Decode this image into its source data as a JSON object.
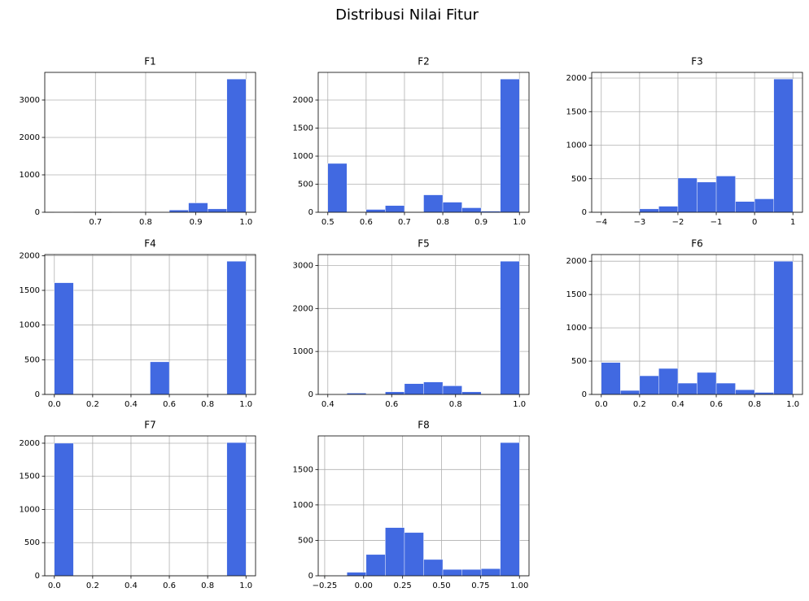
{
  "title": "Distribusi Nilai Fitur",
  "chart_data": [
    {
      "type": "histogram",
      "title": "F1",
      "color": "#4169e1",
      "grid": true,
      "bins": [
        0.618,
        0.6562,
        0.6944,
        0.7326,
        0.7708,
        0.809,
        0.8472,
        0.8854,
        0.9236,
        0.9618,
        1.0
      ],
      "values": [
        1,
        0,
        0,
        1,
        2,
        5,
        60,
        250,
        90,
        3561
      ],
      "xlim": [
        0.599,
        1.019
      ],
      "ylim": [
        0,
        3739
      ],
      "xticks": [
        0.7,
        0.8,
        0.9,
        {
          "value": 1,
          "label": "1.0"
        }
      ],
      "yticks": [
        0,
        1000,
        2000,
        3000
      ]
    },
    {
      "type": "histogram",
      "title": "F2",
      "color": "#4169e1",
      "grid": true,
      "bins": [
        0.5,
        0.55,
        0.6,
        0.65,
        0.7,
        0.75,
        0.8,
        0.85,
        0.9,
        0.95,
        1.0
      ],
      "values": [
        870,
        0,
        50,
        120,
        0,
        310,
        180,
        80,
        20,
        2374
      ],
      "xlim": [
        0.475,
        1.025
      ],
      "ylim": [
        0,
        2493
      ],
      "xticks": [
        0.5,
        0.6,
        0.7,
        0.8,
        0.9,
        {
          "value": 1,
          "label": "1.0"
        }
      ],
      "yticks": [
        0,
        500,
        1000,
        1500,
        2000
      ]
    },
    {
      "type": "histogram",
      "title": "F3",
      "color": "#4169e1",
      "grid": true,
      "bins": [
        -4,
        -3.5,
        -3,
        -2.5,
        -2,
        -1.5,
        -1,
        -0.5,
        0,
        0.5,
        1
      ],
      "values": [
        2,
        0,
        50,
        90,
        510,
        450,
        540,
        160,
        200,
        1986
      ],
      "xlim": [
        -4.25,
        1.25
      ],
      "ylim": [
        0,
        2085
      ],
      "xticks": [
        {
          "value": -4,
          "label": "−4"
        },
        {
          "value": -3,
          "label": "−3"
        },
        {
          "value": -2,
          "label": "−2"
        },
        {
          "value": -1,
          "label": "−1"
        },
        0,
        1
      ],
      "yticks": [
        0,
        500,
        1000,
        1500,
        2000
      ]
    },
    {
      "type": "histogram",
      "title": "F4",
      "color": "#4169e1",
      "grid": true,
      "bins": [
        0,
        0.1,
        0.2,
        0.3,
        0.4,
        0.5,
        0.6,
        0.7,
        0.8,
        0.9,
        1.0
      ],
      "values": [
        1610,
        0,
        0,
        0,
        0,
        470,
        0,
        0,
        0,
        1920
      ],
      "xlim": [
        -0.05,
        1.05
      ],
      "ylim": [
        0,
        2016
      ],
      "xticks": [
        {
          "value": 0,
          "label": "0.0"
        },
        0.2,
        0.4,
        0.6,
        0.8,
        {
          "value": 1,
          "label": "1.0"
        }
      ],
      "yticks": [
        0,
        500,
        1000,
        1500,
        2000
      ]
    },
    {
      "type": "histogram",
      "title": "F5",
      "color": "#4169e1",
      "grid": true,
      "bins": [
        0.4,
        0.46,
        0.52,
        0.58,
        0.64,
        0.7,
        0.76,
        0.82,
        0.88,
        0.94,
        1.0
      ],
      "values": [
        5,
        30,
        5,
        60,
        250,
        290,
        200,
        60,
        0,
        3100
      ],
      "xlim": [
        0.37,
        1.03
      ],
      "ylim": [
        0,
        3255
      ],
      "xticks": [
        0.4,
        0.6,
        0.8,
        {
          "value": 1,
          "label": "1.0"
        }
      ],
      "yticks": [
        0,
        1000,
        2000,
        3000
      ]
    },
    {
      "type": "histogram",
      "title": "F6",
      "color": "#4169e1",
      "grid": true,
      "bins": [
        0,
        0.1,
        0.2,
        0.3,
        0.4,
        0.5,
        0.6,
        0.7,
        0.8,
        0.9,
        1.0
      ],
      "values": [
        480,
        60,
        280,
        390,
        170,
        330,
        170,
        70,
        30,
        2000
      ],
      "xlim": [
        -0.05,
        1.05
      ],
      "ylim": [
        0,
        2100
      ],
      "xticks": [
        {
          "value": 0,
          "label": "0.0"
        },
        0.2,
        0.4,
        0.6,
        0.8,
        {
          "value": 1,
          "label": "1.0"
        }
      ],
      "yticks": [
        0,
        500,
        1000,
        1500,
        2000
      ]
    },
    {
      "type": "histogram",
      "title": "F7",
      "color": "#4169e1",
      "grid": true,
      "bins": [
        0,
        0.1,
        0.2,
        0.3,
        0.4,
        0.5,
        0.6,
        0.7,
        0.8,
        0.9,
        1.0
      ],
      "values": [
        2000,
        0,
        0,
        0,
        0,
        0,
        0,
        0,
        0,
        2010
      ],
      "xlim": [
        -0.05,
        1.05
      ],
      "ylim": [
        0,
        2110
      ],
      "xticks": [
        {
          "value": 0,
          "label": "0.0"
        },
        0.2,
        0.4,
        0.6,
        0.8,
        {
          "value": 1,
          "label": "1.0"
        }
      ],
      "yticks": [
        0,
        500,
        1000,
        1500,
        2000
      ]
    },
    {
      "type": "histogram",
      "title": "F8",
      "color": "#4169e1",
      "grid": true,
      "bins": [
        -0.23,
        -0.107,
        0.016,
        0.139,
        0.262,
        0.385,
        0.508,
        0.631,
        0.754,
        0.877,
        1.0
      ],
      "values": [
        2,
        50,
        300,
        680,
        610,
        230,
        90,
        90,
        100,
        1880
      ],
      "xlim": [
        -0.2915,
        1.0615
      ],
      "ylim": [
        0,
        1974
      ],
      "xticks": [
        {
          "value": -0.25,
          "label": "−0.25"
        },
        {
          "value": 0,
          "label": "0.00"
        },
        0.25,
        {
          "value": 0.5,
          "label": "0.50"
        },
        0.75,
        {
          "value": 1,
          "label": "1.00"
        }
      ],
      "yticks": [
        0,
        500,
        1000,
        1500
      ]
    }
  ]
}
